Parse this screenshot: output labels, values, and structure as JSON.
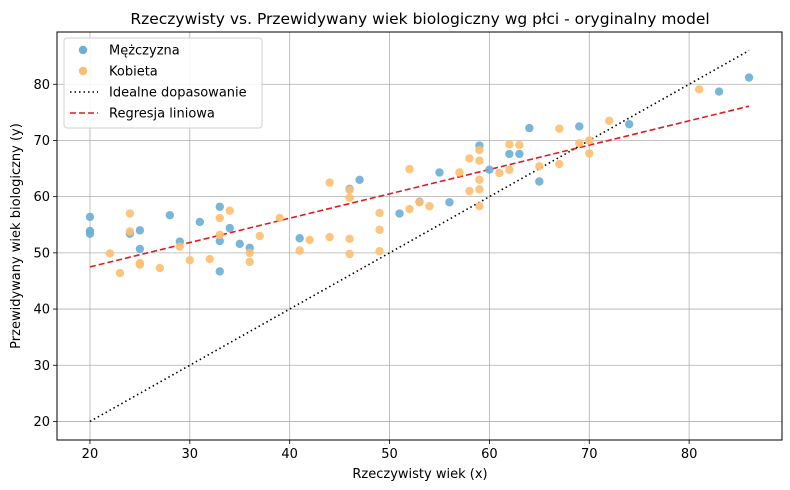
{
  "chart_data": {
    "type": "scatter",
    "title": "Rzeczywisty vs. Przewidywany wiek biologiczny wg płci - oryginalny model",
    "xlabel": "Rzeczywisty wiek (x)",
    "ylabel": "Przewidywany wiek biologiczny (y)",
    "xlim": [
      16.7,
      89.3
    ],
    "ylim": [
      16.7,
      89.3
    ],
    "xticks": [
      20,
      30,
      40,
      50,
      60,
      70,
      80
    ],
    "yticks": [
      20,
      30,
      40,
      50,
      60,
      70,
      80
    ],
    "grid": true,
    "legend_position": "top-left",
    "series": [
      {
        "name": "Mężczyzna",
        "kind": "scatter",
        "color": "#6baed6",
        "points": [
          [
            20,
            56.4
          ],
          [
            20,
            53.9
          ],
          [
            20,
            53.4
          ],
          [
            24,
            53.4
          ],
          [
            25,
            54.0
          ],
          [
            25,
            50.7
          ],
          [
            28,
            56.7
          ],
          [
            29,
            52.0
          ],
          [
            31,
            55.5
          ],
          [
            33,
            58.2
          ],
          [
            33,
            52.1
          ],
          [
            33,
            46.7
          ],
          [
            34,
            54.4
          ],
          [
            35,
            51.6
          ],
          [
            36,
            50.9
          ],
          [
            41,
            52.6
          ],
          [
            46,
            61.4
          ],
          [
            47,
            63.0
          ],
          [
            51,
            57.0
          ],
          [
            53,
            59.1
          ],
          [
            55,
            64.3
          ],
          [
            56,
            59.0
          ],
          [
            59,
            69.1
          ],
          [
            60,
            64.8
          ],
          [
            62,
            67.6
          ],
          [
            63,
            67.6
          ],
          [
            64,
            72.2
          ],
          [
            65,
            62.7
          ],
          [
            69,
            72.5
          ],
          [
            74,
            72.9
          ],
          [
            83,
            78.7
          ],
          [
            86,
            81.2
          ]
        ]
      },
      {
        "name": "Kobieta",
        "kind": "scatter",
        "color": "#fdbf6f",
        "points": [
          [
            22,
            49.9
          ],
          [
            23,
            46.4
          ],
          [
            24,
            57.0
          ],
          [
            24,
            53.8
          ],
          [
            25,
            48.2
          ],
          [
            25,
            47.9
          ],
          [
            27,
            47.3
          ],
          [
            29,
            51.1
          ],
          [
            30,
            48.7
          ],
          [
            32,
            48.9
          ],
          [
            33,
            56.2
          ],
          [
            33,
            53.2
          ],
          [
            34,
            57.5
          ],
          [
            36,
            50.0
          ],
          [
            36,
            48.4
          ],
          [
            37,
            53.0
          ],
          [
            39,
            56.2
          ],
          [
            41,
            50.4
          ],
          [
            42,
            52.3
          ],
          [
            44,
            62.5
          ],
          [
            44,
            52.8
          ],
          [
            46,
            61.2
          ],
          [
            46,
            59.8
          ],
          [
            46,
            52.5
          ],
          [
            46,
            49.8
          ],
          [
            49,
            57.1
          ],
          [
            49,
            54.1
          ],
          [
            49,
            50.3
          ],
          [
            52,
            64.9
          ],
          [
            52,
            57.8
          ],
          [
            53,
            59.0
          ],
          [
            54,
            58.3
          ],
          [
            57,
            64.3
          ],
          [
            58,
            66.8
          ],
          [
            58,
            61.0
          ],
          [
            59,
            68.3
          ],
          [
            59,
            66.4
          ],
          [
            59,
            63.0
          ],
          [
            59,
            61.3
          ],
          [
            59,
            58.3
          ],
          [
            61,
            64.2
          ],
          [
            62,
            69.3
          ],
          [
            62,
            64.8
          ],
          [
            63,
            69.2
          ],
          [
            65,
            65.4
          ],
          [
            67,
            72.1
          ],
          [
            67,
            65.8
          ],
          [
            69,
            69.5
          ],
          [
            70,
            70.0
          ],
          [
            70,
            67.7
          ],
          [
            72,
            73.5
          ],
          [
            81,
            79.1
          ]
        ]
      },
      {
        "name": "Idealne dopasowanie",
        "kind": "line",
        "style": "dotted",
        "color": "#000000",
        "points": [
          [
            20,
            20
          ],
          [
            86,
            86
          ]
        ]
      },
      {
        "name": "Regresja liniowa",
        "kind": "line",
        "style": "dashed",
        "color": "#e31a1c",
        "points": [
          [
            20,
            47.5
          ],
          [
            86,
            76.1
          ]
        ]
      }
    ]
  }
}
